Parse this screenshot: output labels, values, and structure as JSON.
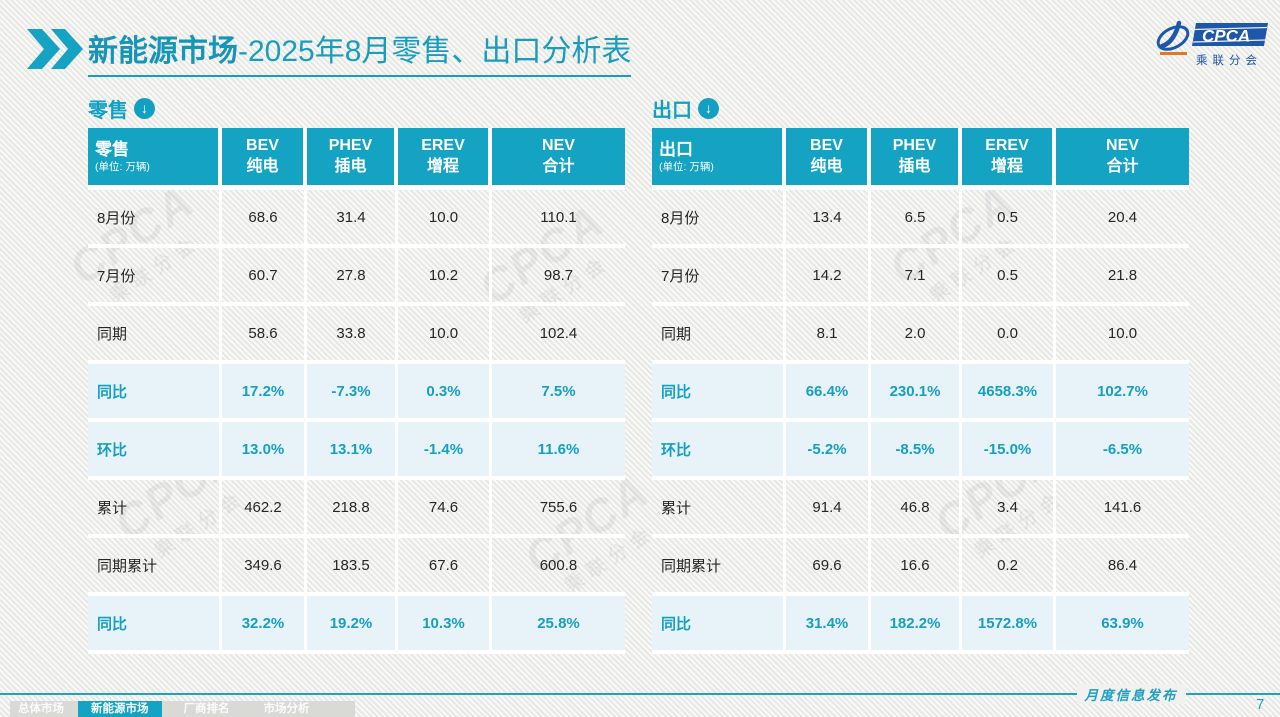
{
  "title": {
    "bold": "新能源市场",
    "rest": "-2025年8月零售、出口分析表"
  },
  "logo": {
    "acronym": "CPCA",
    "name": "乘联分会"
  },
  "watermark": {
    "text": "CPCA",
    "subtext": "乘联分会"
  },
  "icons": {
    "down_arrow": "↓",
    "chevron": "»"
  },
  "colors": {
    "teal_header": "#14a3c2",
    "title_teal": "#1596b8",
    "highlight_row_bg": "#e7f3f9",
    "highlight_text": "#179fc0",
    "logo_blue": "#1e56a8",
    "footer_bar_gray": "#d9d9d6"
  },
  "tables": [
    {
      "section_label": "零售",
      "corner_title": "零售",
      "unit": "(单位: 万辆)",
      "columns": [
        {
          "en": "BEV",
          "cn": "纯电"
        },
        {
          "en": "PHEV",
          "cn": "插电"
        },
        {
          "en": "EREV",
          "cn": "增程"
        },
        {
          "en": "NEV",
          "cn": "合计"
        }
      ],
      "rows": [
        {
          "label": "8月份",
          "values": [
            "68.6",
            "31.4",
            "10.0",
            "110.1"
          ],
          "highlight": false
        },
        {
          "label": "7月份",
          "values": [
            "60.7",
            "27.8",
            "10.2",
            "98.7"
          ],
          "highlight": false
        },
        {
          "label": "同期",
          "values": [
            "58.6",
            "33.8",
            "10.0",
            "102.4"
          ],
          "highlight": false
        },
        {
          "label": "同比",
          "values": [
            "17.2%",
            "-7.3%",
            "0.3%",
            "7.5%"
          ],
          "highlight": true
        },
        {
          "label": "环比",
          "values": [
            "13.0%",
            "13.1%",
            "-1.4%",
            "11.6%"
          ],
          "highlight": true
        },
        {
          "label": "累计",
          "values": [
            "462.2",
            "218.8",
            "74.6",
            "755.6"
          ],
          "highlight": false
        },
        {
          "label": "同期累计",
          "values": [
            "349.6",
            "183.5",
            "67.6",
            "600.8"
          ],
          "highlight": false
        },
        {
          "label": "同比",
          "values": [
            "32.2%",
            "19.2%",
            "10.3%",
            "25.8%"
          ],
          "highlight": true
        }
      ]
    },
    {
      "section_label": "出口",
      "corner_title": "出口",
      "unit": "(单位: 万辆)",
      "columns": [
        {
          "en": "BEV",
          "cn": "纯电"
        },
        {
          "en": "PHEV",
          "cn": "插电"
        },
        {
          "en": "EREV",
          "cn": "增程"
        },
        {
          "en": "NEV",
          "cn": "合计"
        }
      ],
      "rows": [
        {
          "label": "8月份",
          "values": [
            "13.4",
            "6.5",
            "0.5",
            "20.4"
          ],
          "highlight": false
        },
        {
          "label": "7月份",
          "values": [
            "14.2",
            "7.1",
            "0.5",
            "21.8"
          ],
          "highlight": false
        },
        {
          "label": "同期",
          "values": [
            "8.1",
            "2.0",
            "0.0",
            "10.0"
          ],
          "highlight": false
        },
        {
          "label": "同比",
          "values": [
            "66.4%",
            "230.1%",
            "4658.3%",
            "102.7%"
          ],
          "highlight": true
        },
        {
          "label": "环比",
          "values": [
            "-5.2%",
            "-8.5%",
            "-15.0%",
            "-6.5%"
          ],
          "highlight": true
        },
        {
          "label": "累计",
          "values": [
            "91.4",
            "46.8",
            "3.4",
            "141.6"
          ],
          "highlight": false
        },
        {
          "label": "同期累计",
          "values": [
            "69.6",
            "16.6",
            "0.2",
            "86.4"
          ],
          "highlight": false
        },
        {
          "label": "同比",
          "values": [
            "31.4%",
            "182.2%",
            "1572.8%",
            "63.9%"
          ],
          "highlight": true
        }
      ]
    }
  ],
  "footer": {
    "tabs": [
      {
        "label": "总体市场",
        "active": false
      },
      {
        "label": "新能源市场",
        "active": true
      },
      {
        "label": "厂商排名",
        "active": false
      },
      {
        "label": "市场分析",
        "active": false
      }
    ],
    "publication": "月度信息发布",
    "page_number": "7"
  }
}
